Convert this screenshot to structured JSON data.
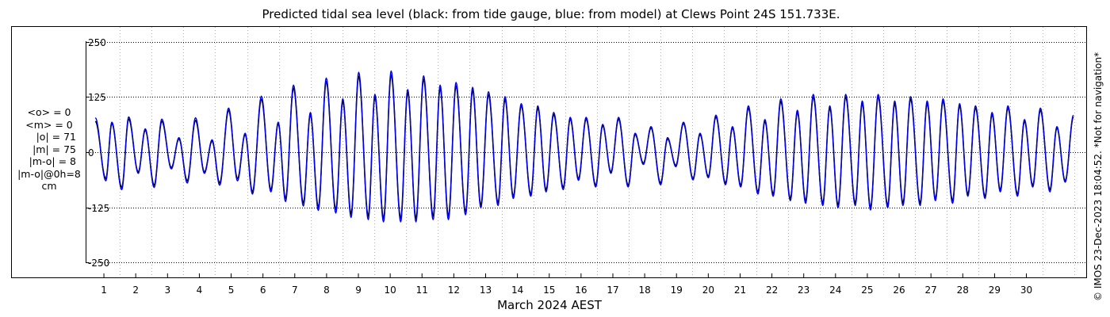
{
  "stats": {
    "mean_obs": "<o> = 0",
    "mean_model": "<m> = 0",
    "abs_obs": "|o| = 71",
    "abs_model": "|m| = 75",
    "abs_diff": "|m-o| = 8",
    "abs_diff_0h": "|m-o|@0h=8",
    "units": "cm"
  },
  "copyright": "© IMOS 23-Dec-2023 18:04:52. *Not for navigation*",
  "colors": {
    "gauge": "#000000",
    "model": "#0000ee",
    "grid": "#000000"
  },
  "chart_data": {
    "type": "line",
    "title": "Predicted tidal sea level (black: from tide gauge, blue: from model) at Clews Point 24S 151.733E.",
    "xlabel": "March 2024 AEST",
    "ylabel": "",
    "x_ticks": [
      "1",
      "2",
      "3",
      "4",
      "5",
      "6",
      "7",
      "8",
      "9",
      "10",
      "11",
      "12",
      "13",
      "14",
      "15",
      "16",
      "17",
      "18",
      "19",
      "20",
      "21",
      "22",
      "23",
      "24",
      "25",
      "26",
      "27",
      "28",
      "29",
      "30"
    ],
    "y_ticks": [
      "250",
      "125",
      "0",
      "-125",
      "-250"
    ],
    "y_tick_values": [
      250,
      125,
      0,
      -125,
      -250
    ],
    "xlim": [
      0.2,
      31.0
    ],
    "ylim": [
      -280,
      280
    ],
    "grid": true,
    "series": [
      {
        "name": "tide gauge",
        "color": "#000000",
        "peaks": [
          {
            "t": 0.23,
            "v": 70
          },
          {
            "t": 0.56,
            "v": -60
          },
          {
            "t": 0.75,
            "v": 65
          },
          {
            "t": 1.06,
            "v": -80
          },
          {
            "t": 1.28,
            "v": 75
          },
          {
            "t": 1.58,
            "v": -45
          },
          {
            "t": 1.8,
            "v": 50
          },
          {
            "t": 2.08,
            "v": -75
          },
          {
            "t": 2.32,
            "v": 70
          },
          {
            "t": 2.62,
            "v": -35
          },
          {
            "t": 2.86,
            "v": 30
          },
          {
            "t": 3.12,
            "v": -65
          },
          {
            "t": 3.38,
            "v": 72
          },
          {
            "t": 3.66,
            "v": -45
          },
          {
            "t": 3.9,
            "v": 25
          },
          {
            "t": 4.14,
            "v": -70
          },
          {
            "t": 4.42,
            "v": 95
          },
          {
            "t": 4.7,
            "v": -60
          },
          {
            "t": 4.94,
            "v": 40
          },
          {
            "t": 5.17,
            "v": -90
          },
          {
            "t": 5.45,
            "v": 120
          },
          {
            "t": 5.75,
            "v": -85
          },
          {
            "t": 5.98,
            "v": 65
          },
          {
            "t": 6.21,
            "v": -105
          },
          {
            "t": 6.46,
            "v": 145
          },
          {
            "t": 6.77,
            "v": -115
          },
          {
            "t": 6.99,
            "v": 85
          },
          {
            "t": 7.24,
            "v": -125
          },
          {
            "t": 7.49,
            "v": 160
          },
          {
            "t": 7.79,
            "v": -130
          },
          {
            "t": 8.01,
            "v": 115
          },
          {
            "t": 8.27,
            "v": -140
          },
          {
            "t": 8.51,
            "v": 172
          },
          {
            "t": 8.81,
            "v": -145
          },
          {
            "t": 9.02,
            "v": 125
          },
          {
            "t": 9.29,
            "v": -150
          },
          {
            "t": 9.53,
            "v": 175
          },
          {
            "t": 9.83,
            "v": -150
          },
          {
            "t": 10.05,
            "v": 135
          },
          {
            "t": 10.31,
            "v": -150
          },
          {
            "t": 10.55,
            "v": 165
          },
          {
            "t": 10.85,
            "v": -145
          },
          {
            "t": 11.07,
            "v": 145
          },
          {
            "t": 11.33,
            "v": -145
          },
          {
            "t": 11.57,
            "v": 150
          },
          {
            "t": 11.87,
            "v": -135
          },
          {
            "t": 12.09,
            "v": 140
          },
          {
            "t": 12.35,
            "v": -120
          },
          {
            "t": 12.59,
            "v": 130
          },
          {
            "t": 12.89,
            "v": -115
          },
          {
            "t": 13.11,
            "v": 120
          },
          {
            "t": 13.37,
            "v": -100
          },
          {
            "t": 13.62,
            "v": 105
          },
          {
            "t": 13.92,
            "v": -95
          },
          {
            "t": 14.14,
            "v": 100
          },
          {
            "t": 14.4,
            "v": -85
          },
          {
            "t": 14.64,
            "v": 85
          },
          {
            "t": 14.94,
            "v": -80
          },
          {
            "t": 15.16,
            "v": 75
          },
          {
            "t": 15.42,
            "v": -60
          },
          {
            "t": 15.66,
            "v": 75
          },
          {
            "t": 15.96,
            "v": -75
          },
          {
            "t": 16.18,
            "v": 60
          },
          {
            "t": 16.44,
            "v": -45
          },
          {
            "t": 16.68,
            "v": 75
          },
          {
            "t": 16.98,
            "v": -75
          },
          {
            "t": 17.2,
            "v": 40
          },
          {
            "t": 17.46,
            "v": -25
          },
          {
            "t": 17.7,
            "v": 55
          },
          {
            "t": 18.0,
            "v": -70
          },
          {
            "t": 18.22,
            "v": 30
          },
          {
            "t": 18.48,
            "v": -30
          },
          {
            "t": 18.72,
            "v": 65
          },
          {
            "t": 19.02,
            "v": -60
          },
          {
            "t": 19.24,
            "v": 40
          },
          {
            "t": 19.5,
            "v": -55
          },
          {
            "t": 19.74,
            "v": 80
          },
          {
            "t": 20.04,
            "v": -70
          },
          {
            "t": 20.26,
            "v": 55
          },
          {
            "t": 20.52,
            "v": -75
          },
          {
            "t": 20.76,
            "v": 100
          },
          {
            "t": 21.06,
            "v": -90
          },
          {
            "t": 21.28,
            "v": 70
          },
          {
            "t": 21.54,
            "v": -95
          },
          {
            "t": 21.78,
            "v": 115
          },
          {
            "t": 22.08,
            "v": -105
          },
          {
            "t": 22.3,
            "v": 90
          },
          {
            "t": 22.56,
            "v": -110
          },
          {
            "t": 22.8,
            "v": 125
          },
          {
            "t": 23.1,
            "v": -115
          },
          {
            "t": 23.32,
            "v": 100
          },
          {
            "t": 23.58,
            "v": -120
          },
          {
            "t": 23.82,
            "v": 125
          },
          {
            "t": 24.12,
            "v": -115
          },
          {
            "t": 24.34,
            "v": 110
          },
          {
            "t": 24.6,
            "v": -125
          },
          {
            "t": 24.84,
            "v": 125
          },
          {
            "t": 25.14,
            "v": -120
          },
          {
            "t": 25.36,
            "v": 110
          },
          {
            "t": 25.62,
            "v": -115
          },
          {
            "t": 25.86,
            "v": 120
          },
          {
            "t": 26.16,
            "v": -115
          },
          {
            "t": 26.38,
            "v": 110
          },
          {
            "t": 26.64,
            "v": -105
          },
          {
            "t": 26.88,
            "v": 115
          },
          {
            "t": 27.18,
            "v": -110
          },
          {
            "t": 27.4,
            "v": 105
          },
          {
            "t": 27.66,
            "v": -95
          },
          {
            "t": 27.9,
            "v": 100
          },
          {
            "t": 28.2,
            "v": -100
          },
          {
            "t": 28.42,
            "v": 85
          },
          {
            "t": 28.68,
            "v": -85
          },
          {
            "t": 28.92,
            "v": 100
          },
          {
            "t": 29.22,
            "v": -95
          },
          {
            "t": 29.44,
            "v": 70
          },
          {
            "t": 29.7,
            "v": -75
          },
          {
            "t": 29.94,
            "v": 95
          },
          {
            "t": 30.24,
            "v": -85
          },
          {
            "t": 30.46,
            "v": 55
          },
          {
            "t": 30.72,
            "v": -65
          },
          {
            "t": 30.98,
            "v": 80
          }
        ]
      },
      {
        "name": "model",
        "color": "#0000ee",
        "peaks": [
          {
            "t": 0.23,
            "v": 78
          },
          {
            "t": 0.56,
            "v": -65
          },
          {
            "t": 0.75,
            "v": 68
          },
          {
            "t": 1.06,
            "v": -85
          },
          {
            "t": 1.28,
            "v": 80
          },
          {
            "t": 1.58,
            "v": -48
          },
          {
            "t": 1.8,
            "v": 53
          },
          {
            "t": 2.08,
            "v": -80
          },
          {
            "t": 2.32,
            "v": 75
          },
          {
            "t": 2.62,
            "v": -38
          },
          {
            "t": 2.86,
            "v": 33
          },
          {
            "t": 3.12,
            "v": -70
          },
          {
            "t": 3.38,
            "v": 78
          },
          {
            "t": 3.66,
            "v": -48
          },
          {
            "t": 3.9,
            "v": 28
          },
          {
            "t": 4.14,
            "v": -75
          },
          {
            "t": 4.42,
            "v": 100
          },
          {
            "t": 4.7,
            "v": -65
          },
          {
            "t": 4.94,
            "v": 43
          },
          {
            "t": 5.17,
            "v": -95
          },
          {
            "t": 5.45,
            "v": 127
          },
          {
            "t": 5.75,
            "v": -90
          },
          {
            "t": 5.98,
            "v": 68
          },
          {
            "t": 6.21,
            "v": -112
          },
          {
            "t": 6.46,
            "v": 152
          },
          {
            "t": 6.77,
            "v": -122
          },
          {
            "t": 6.99,
            "v": 90
          },
          {
            "t": 7.24,
            "v": -132
          },
          {
            "t": 7.49,
            "v": 168
          },
          {
            "t": 7.79,
            "v": -138
          },
          {
            "t": 8.01,
            "v": 121
          },
          {
            "t": 8.27,
            "v": -148
          },
          {
            "t": 8.51,
            "v": 181
          },
          {
            "t": 8.81,
            "v": -153
          },
          {
            "t": 9.02,
            "v": 131
          },
          {
            "t": 9.29,
            "v": -158
          },
          {
            "t": 9.53,
            "v": 184
          },
          {
            "t": 9.83,
            "v": -158
          },
          {
            "t": 10.05,
            "v": 142
          },
          {
            "t": 10.31,
            "v": -158
          },
          {
            "t": 10.55,
            "v": 173
          },
          {
            "t": 10.85,
            "v": -153
          },
          {
            "t": 11.07,
            "v": 152
          },
          {
            "t": 11.33,
            "v": -153
          },
          {
            "t": 11.57,
            "v": 158
          },
          {
            "t": 11.87,
            "v": -142
          },
          {
            "t": 12.09,
            "v": 147
          },
          {
            "t": 12.35,
            "v": -126
          },
          {
            "t": 12.59,
            "v": 137
          },
          {
            "t": 12.89,
            "v": -121
          },
          {
            "t": 13.11,
            "v": 126
          },
          {
            "t": 13.37,
            "v": -105
          },
          {
            "t": 13.62,
            "v": 110
          },
          {
            "t": 13.92,
            "v": -100
          },
          {
            "t": 14.14,
            "v": 105
          },
          {
            "t": 14.4,
            "v": -90
          },
          {
            "t": 14.64,
            "v": 90
          },
          {
            "t": 14.94,
            "v": -85
          },
          {
            "t": 15.16,
            "v": 79
          },
          {
            "t": 15.42,
            "v": -64
          },
          {
            "t": 15.66,
            "v": 79
          },
          {
            "t": 15.96,
            "v": -79
          },
          {
            "t": 16.18,
            "v": 63
          },
          {
            "t": 16.44,
            "v": -48
          },
          {
            "t": 16.68,
            "v": 79
          },
          {
            "t": 16.98,
            "v": -79
          },
          {
            "t": 17.2,
            "v": 43
          },
          {
            "t": 17.46,
            "v": -28
          },
          {
            "t": 17.7,
            "v": 58
          },
          {
            "t": 18.0,
            "v": -74
          },
          {
            "t": 18.22,
            "v": 33
          },
          {
            "t": 18.48,
            "v": -33
          },
          {
            "t": 18.72,
            "v": 68
          },
          {
            "t": 19.02,
            "v": -63
          },
          {
            "t": 19.24,
            "v": 43
          },
          {
            "t": 19.5,
            "v": -58
          },
          {
            "t": 19.74,
            "v": 84
          },
          {
            "t": 20.04,
            "v": -74
          },
          {
            "t": 20.26,
            "v": 58
          },
          {
            "t": 20.52,
            "v": -79
          },
          {
            "t": 20.76,
            "v": 105
          },
          {
            "t": 21.06,
            "v": -95
          },
          {
            "t": 21.28,
            "v": 74
          },
          {
            "t": 21.54,
            "v": -100
          },
          {
            "t": 21.78,
            "v": 121
          },
          {
            "t": 22.08,
            "v": -110
          },
          {
            "t": 22.3,
            "v": 95
          },
          {
            "t": 22.56,
            "v": -116
          },
          {
            "t": 22.8,
            "v": 131
          },
          {
            "t": 23.1,
            "v": -121
          },
          {
            "t": 23.32,
            "v": 105
          },
          {
            "t": 23.58,
            "v": -126
          },
          {
            "t": 23.82,
            "v": 131
          },
          {
            "t": 24.12,
            "v": -121
          },
          {
            "t": 24.34,
            "v": 116
          },
          {
            "t": 24.6,
            "v": -131
          },
          {
            "t": 24.84,
            "v": 131
          },
          {
            "t": 25.14,
            "v": -126
          },
          {
            "t": 25.36,
            "v": 116
          },
          {
            "t": 25.62,
            "v": -121
          },
          {
            "t": 25.86,
            "v": 126
          },
          {
            "t": 26.16,
            "v": -121
          },
          {
            "t": 26.38,
            "v": 116
          },
          {
            "t": 26.64,
            "v": -110
          },
          {
            "t": 26.88,
            "v": 121
          },
          {
            "t": 27.18,
            "v": -116
          },
          {
            "t": 27.4,
            "v": 110
          },
          {
            "t": 27.66,
            "v": -100
          },
          {
            "t": 27.9,
            "v": 105
          },
          {
            "t": 28.2,
            "v": -105
          },
          {
            "t": 28.42,
            "v": 90
          },
          {
            "t": 28.68,
            "v": -90
          },
          {
            "t": 28.92,
            "v": 105
          },
          {
            "t": 29.22,
            "v": -100
          },
          {
            "t": 29.44,
            "v": 74
          },
          {
            "t": 29.7,
            "v": -79
          },
          {
            "t": 29.94,
            "v": 100
          },
          {
            "t": 30.24,
            "v": -90
          },
          {
            "t": 30.46,
            "v": 58
          },
          {
            "t": 30.72,
            "v": -68
          },
          {
            "t": 30.98,
            "v": 84
          }
        ]
      }
    ]
  }
}
